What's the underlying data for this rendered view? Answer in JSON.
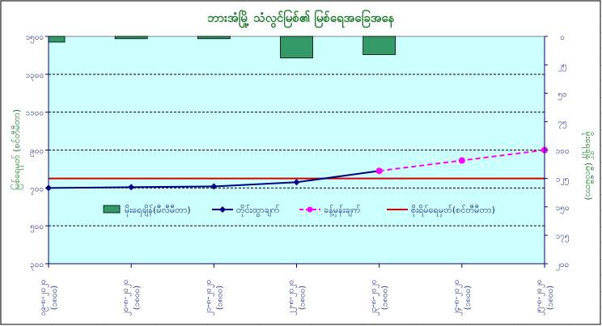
{
  "chart_data": {
    "type": "line",
    "title": "ဘားအံမြို့ သံလွင်မြစ်၏ မြစ်ရေအခြေအနေ",
    "ylabel": "မြစ်ရေမှတ် (စင်တီမီတာ)",
    "y2label": "မိုးရေချိန် (မီလီမီတာ)",
    "ylim": [
      300,
      1500
    ],
    "y2lim": [
      0,
      200
    ],
    "y2_inverted": true,
    "yticks": [
      "၃၀၀",
      "၅၀၀",
      "၇၀၀",
      "၉၀၀",
      "၁၁၀၀",
      "၁၃၀၀",
      "၁၅၀၀"
    ],
    "y2ticks": [
      "၀",
      "၂၅",
      "၅၀",
      "၇၅",
      "၁၀၀",
      "၁၂၅",
      "၁၅၀",
      "၁၇၅",
      "၂၀၀"
    ],
    "categories": [
      [
        "၁၉-၈-၂၀၂၀",
        "(၁၈၀၀)"
      ],
      [
        "၂၀-၈-၂၀၂၀",
        "(၁၈၀၀)"
      ],
      [
        "၂၁-၈-၂၀၂၀",
        "(၁၈၀၀)"
      ],
      [
        "၂၂-၈-၂၀၂၀",
        "(၁၈၀၀)"
      ],
      [
        "၂၃-၈-၂၀၂၀",
        "(၁၈၀၀)"
      ],
      [
        "၂၄-၈-၂၀၂၀",
        "(၁၈၀၀)"
      ],
      [
        "၂၅-၈-၂၀၂၀",
        "(၁၈၀၀)"
      ]
    ],
    "grid": true,
    "legend_position": "center",
    "series": [
      {
        "name": "မိုးရေချိန်(မီလီမီတာ)",
        "kind": "bar",
        "axis": "right",
        "color": "#339966",
        "values": [
          5,
          2,
          2,
          19,
          16,
          null,
          null
        ]
      },
      {
        "name": "တိုင်းထွာချက်",
        "kind": "line",
        "axis": "left",
        "color": "#000080",
        "values": [
          700,
          704,
          708,
          730,
          790,
          null,
          null
        ]
      },
      {
        "name": "ခန့်မှန်းချက်",
        "kind": "line",
        "axis": "left",
        "color": "#ff00ff",
        "dashed": true,
        "values": [
          null,
          null,
          null,
          null,
          790,
          845,
          900
        ]
      },
      {
        "name": "စိုးရိမ်ရေမှတ်(စင်တီမီတာ)",
        "kind": "hline",
        "axis": "left",
        "color": "#cc0000",
        "value": 750
      }
    ]
  }
}
